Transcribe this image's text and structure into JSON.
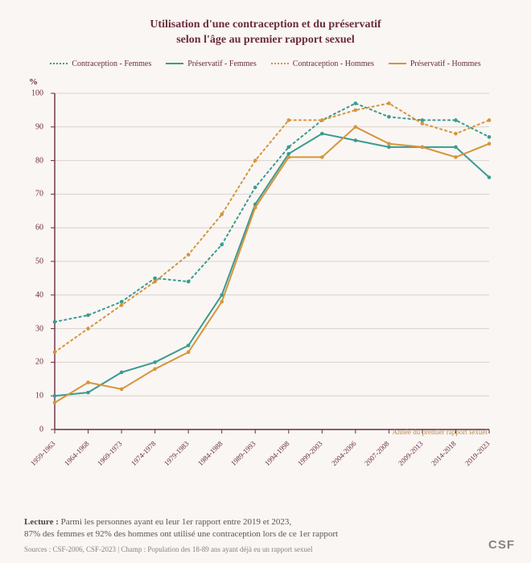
{
  "title_line1": "Utilisation d'une contraception et du préservatif",
  "title_line2": "selon l'âge au premier rapport sexuel",
  "y_axis_label": "%",
  "x_axis_note": "Année du premier rapport sexuel",
  "legend": [
    {
      "label": "Contraception - Femmes",
      "color": "#3a9b8f",
      "dash": "dotted"
    },
    {
      "label": "Préservatif - Femmes",
      "color": "#3a9b8f",
      "dash": "solid"
    },
    {
      "label": "Contraception - Hommes",
      "color": "#d6953a",
      "dash": "dotted"
    },
    {
      "label": "Préservatif - Hommes",
      "color": "#d6953a",
      "dash": "solid"
    }
  ],
  "chart": {
    "type": "line",
    "background_color": "#f9f6f4",
    "grid_color": "#d9d2cc",
    "axis_color": "#6b2b3e",
    "line_width": 2,
    "dot_radius": 2.3,
    "ylim": [
      0,
      100
    ],
    "ytick_step": 10,
    "categories": [
      "1959-1963",
      "1964-1968",
      "1969-1973",
      "1974-1978",
      "1979-1983",
      "1984-1988",
      "1989-1993",
      "1994-1998",
      "1999-2003",
      "2004-2006",
      "2007-2008",
      "2009-2013",
      "2014-2018",
      "2019-2023"
    ],
    "series": {
      "contraception_femmes": {
        "color": "#3a9b8f",
        "dash": "dotted",
        "values": [
          32,
          34,
          38,
          45,
          44,
          55,
          72,
          84,
          92,
          97,
          93,
          92,
          92,
          87
        ]
      },
      "preservatif_femmes": {
        "color": "#3a9b8f",
        "dash": "solid",
        "values": [
          10,
          11,
          17,
          20,
          25,
          40,
          67,
          82,
          88,
          86,
          84,
          84,
          84,
          75
        ]
      },
      "contraception_hommes": {
        "color": "#d6953a",
        "dash": "dotted",
        "values": [
          23,
          30,
          37,
          44,
          52,
          64,
          80,
          92,
          92,
          95,
          97,
          91,
          88,
          92
        ]
      },
      "preservatif_hommes": {
        "color": "#d6953a",
        "dash": "solid",
        "values": [
          8,
          14,
          12,
          18,
          23,
          38,
          66,
          81,
          81,
          90,
          85,
          84,
          81,
          85
        ]
      }
    }
  },
  "footer_lead": "Lecture :",
  "footer_line1": " Parmi les personnes ayant eu leur 1er rapport entre 2019 et 2023,",
  "footer_line2": "87% des femmes et 92% des hommes ont utilisé une contraception lors de ce 1er rapport",
  "sources": "Sources : CSF-2006, CSF-2023  |  Champ : Population des 18-89 ans ayant déjà eu un rapport sexuel",
  "logo": "CSF"
}
